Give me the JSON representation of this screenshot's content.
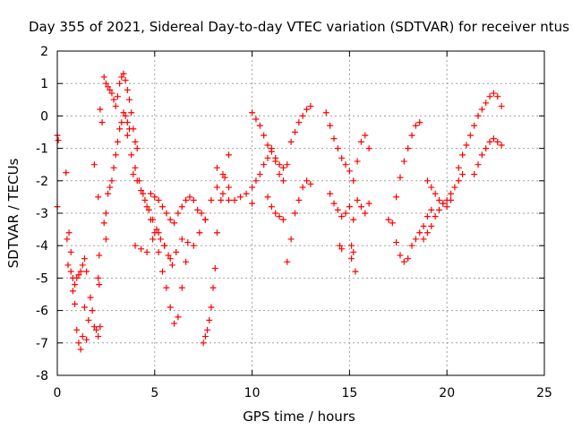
{
  "chart_data": {
    "type": "scatter",
    "title": "Day 355 of 2021, Sidereal Day-to-day VTEC variation (SDTVAR) for receiver ntus",
    "xlabel": "GPS time / hours",
    "ylabel": "SDTVAR / TECUs",
    "xlim": [
      0,
      25
    ],
    "ylim": [
      -8,
      2
    ],
    "xticks": [
      "0",
      "5",
      "10",
      "15",
      "20",
      "25"
    ],
    "yticks": [
      "-8",
      "-7",
      "-6",
      "-5",
      "-4",
      "-3",
      "-2",
      "-1",
      "0",
      "1",
      "2"
    ],
    "grid": true,
    "marker": "+",
    "color": "#ff0000",
    "series": [
      {
        "name": "isolated",
        "x": [
          0.0,
          0.0,
          0.05,
          0.45,
          0.5,
          0.55,
          1.9,
          2.1,
          2.15
        ],
        "y": [
          -0.6,
          -2.8,
          -0.75,
          -1.75,
          -3.8,
          -4.6,
          -1.5,
          -2.5,
          -4.3
        ]
      },
      {
        "name": "early-dip-a",
        "x": [
          0.6,
          0.7,
          0.8,
          0.9,
          1.0,
          1.1,
          1.2,
          1.3,
          1.4,
          1.5
        ],
        "y": [
          -3.6,
          -4.2,
          -5.0,
          -5.8,
          -6.6,
          -7.0,
          -7.2,
          -6.8,
          -5.9,
          -4.8
        ]
      },
      {
        "name": "early-dip-b",
        "x": [
          0.7,
          0.8,
          0.9,
          1.0,
          1.1,
          1.2,
          1.3,
          1.4
        ],
        "y": [
          -4.8,
          -5.4,
          -5.2,
          -5.0,
          -4.9,
          -4.8,
          -4.6,
          -4.4
        ]
      },
      {
        "name": "early-rise",
        "x": [
          1.5,
          1.6,
          1.7,
          1.8,
          1.9,
          2.0,
          2.1,
          2.2
        ],
        "y": [
          -6.9,
          -6.3,
          -5.6,
          -6.0,
          -6.5,
          -6.6,
          -6.8,
          -6.5
        ]
      },
      {
        "name": "early-right",
        "x": [
          2.1,
          2.15,
          2.2,
          2.3,
          2.4,
          2.5
        ],
        "y": [
          -5.0,
          -5.2,
          0.2,
          -0.2,
          -3.3,
          -3.8
        ]
      },
      {
        "name": "dawn-peak",
        "x": [
          2.4,
          2.5,
          2.6,
          2.7,
          2.8,
          2.9,
          3.0,
          3.1,
          3.2,
          3.3,
          3.4,
          3.5,
          3.6,
          3.7,
          3.8,
          3.9,
          4.0,
          4.1
        ],
        "y": [
          1.2,
          1.0,
          0.9,
          0.8,
          0.7,
          0.5,
          0.3,
          0.6,
          1.0,
          1.2,
          1.3,
          1.1,
          0.8,
          0.5,
          0.1,
          -0.4,
          -0.8,
          -1.0
        ]
      },
      {
        "name": "dawn-lower",
        "x": [
          2.5,
          2.6,
          2.7,
          2.8,
          2.9,
          3.0,
          3.1,
          3.2,
          3.3,
          3.4,
          3.5,
          3.6,
          3.7
        ],
        "y": [
          -3.0,
          -2.4,
          -2.2,
          -2.0,
          -1.6,
          -1.2,
          -0.8,
          -0.4,
          -0.2,
          0.1,
          0.0,
          -0.2,
          -0.4
        ]
      },
      {
        "name": "decline-a",
        "x": [
          3.6,
          3.8,
          4.0,
          4.2,
          4.4,
          4.6,
          4.8,
          5.0,
          5.2,
          5.4,
          5.6,
          5.8,
          6.0,
          6.2,
          6.4,
          6.6
        ],
        "y": [
          -0.6,
          -1.2,
          -1.6,
          -2.0,
          -2.4,
          -2.8,
          -3.2,
          -3.6,
          -4.2,
          -4.8,
          -5.3,
          -5.9,
          -6.4,
          -6.2,
          -5.3,
          -4.5
        ]
      },
      {
        "name": "decline-b",
        "x": [
          3.9,
          4.1,
          4.3,
          4.5,
          4.7,
          4.9,
          5.1,
          5.3,
          5.5,
          5.7,
          5.9
        ],
        "y": [
          -1.8,
          -2.0,
          -2.3,
          -2.6,
          -2.9,
          -3.2,
          -3.5,
          -3.8,
          -4.0,
          -4.3,
          -4.6
        ]
      },
      {
        "name": "band-4",
        "x": [
          4.0,
          4.3,
          4.6,
          4.9,
          5.2,
          5.5,
          5.8,
          6.1,
          6.4,
          6.7,
          7.0,
          7.3,
          7.6,
          7.9,
          8.2,
          8.5,
          8.8
        ],
        "y": [
          -4.0,
          -4.1,
          -4.2,
          -3.8,
          -3.6,
          -4.0,
          -4.4,
          -4.2,
          -3.8,
          -3.9,
          -4.0,
          -3.6,
          -3.2,
          -2.6,
          -2.2,
          -2.4,
          -2.6
        ]
      },
      {
        "name": "morning-arc",
        "x": [
          4.8,
          5.0,
          5.2,
          5.4,
          5.6,
          5.8,
          6.0,
          6.2,
          6.4,
          6.6,
          6.8,
          7.0,
          7.2,
          7.4,
          7.6
        ],
        "y": [
          -2.4,
          -2.5,
          -2.6,
          -2.8,
          -3.0,
          -3.2,
          -3.3,
          -3.0,
          -2.8,
          -2.6,
          -2.5,
          -2.6,
          -2.9,
          -3.0,
          -3.2
        ]
      },
      {
        "name": "evening-dip",
        "x": [
          7.5,
          7.6,
          7.7,
          7.8,
          7.9,
          8.0,
          8.1,
          8.2,
          8.4,
          8.6,
          8.8
        ],
        "y": [
          -7.0,
          -6.8,
          -6.6,
          -6.3,
          -5.9,
          -5.3,
          -4.7,
          -3.6,
          -2.6,
          -1.9,
          -1.2
        ]
      },
      {
        "name": "shelf-9",
        "x": [
          8.2,
          8.5,
          8.8,
          9.1,
          9.4,
          9.7,
          10.0
        ],
        "y": [
          -1.6,
          -1.8,
          -2.2,
          -2.6,
          -2.5,
          -2.4,
          -2.7
        ]
      },
      {
        "name": "midday-rise",
        "x": [
          10.0,
          10.2,
          10.4,
          10.6,
          10.8,
          11.0,
          11.2,
          11.4,
          11.6,
          11.8,
          12.0,
          12.2,
          12.4,
          12.6,
          12.8,
          13.0
        ],
        "y": [
          -2.2,
          -2.0,
          -1.8,
          -1.5,
          -1.3,
          -1.0,
          -1.4,
          -1.8,
          -2.0,
          -1.5,
          -0.8,
          -0.5,
          -0.2,
          0.0,
          0.2,
          0.3
        ]
      },
      {
        "name": "midday-top",
        "x": [
          10.0,
          10.2,
          10.4,
          10.6,
          10.8,
          11.0,
          11.2,
          11.4,
          11.6
        ],
        "y": [
          0.1,
          -0.1,
          -0.3,
          -0.6,
          -0.9,
          -1.1,
          -1.3,
          -1.5,
          -1.6
        ]
      },
      {
        "name": "midday-low",
        "x": [
          10.8,
          11.0,
          11.2,
          11.4,
          11.6,
          11.8,
          12.0,
          12.2,
          12.4,
          12.6,
          12.8,
          13.0
        ],
        "y": [
          -2.5,
          -2.8,
          -3.0,
          -3.1,
          -3.2,
          -4.5,
          -3.8,
          -3.0,
          -2.6,
          -2.2,
          -2.0,
          -2.1
        ]
      },
      {
        "name": "afternoon",
        "x": [
          13.8,
          14.0,
          14.2,
          14.4,
          14.6,
          14.8,
          15.0,
          15.2,
          15.4,
          15.6,
          15.8,
          16.0
        ],
        "y": [
          0.1,
          -0.3,
          -0.7,
          -1.0,
          -1.3,
          -1.5,
          -1.7,
          -2.0,
          -1.4,
          -0.8,
          -0.6,
          -1.0
        ]
      },
      {
        "name": "afternoon-low",
        "x": [
          14.0,
          14.2,
          14.4,
          14.6,
          14.8,
          15.0,
          15.2,
          15.4,
          15.6,
          15.8,
          16.0
        ],
        "y": [
          -2.4,
          -2.7,
          -2.9,
          -3.1,
          -3.0,
          -2.8,
          -3.2,
          -2.6,
          -2.8,
          -3.0,
          -2.7
        ]
      },
      {
        "name": "afternoon-iso",
        "x": [
          14.5,
          14.6,
          15.1,
          15.2,
          15.3,
          15.1
        ],
        "y": [
          -4.0,
          -4.1,
          -4.0,
          -4.2,
          -4.8,
          -4.4
        ]
      },
      {
        "name": "late-dip",
        "x": [
          17.0,
          17.2,
          17.4,
          17.6,
          17.8,
          18.0,
          18.2,
          18.4,
          18.6,
          18.8,
          19.0,
          19.2
        ],
        "y": [
          -3.2,
          -3.3,
          -3.9,
          -4.3,
          -4.5,
          -4.4,
          -4.0,
          -3.8,
          -3.6,
          -3.4,
          -3.1,
          -2.9
        ]
      },
      {
        "name": "late-climb",
        "x": [
          17.4,
          17.6,
          17.8,
          18.0,
          18.2,
          18.4,
          18.6
        ],
        "y": [
          -2.5,
          -1.9,
          -1.4,
          -1.0,
          -0.6,
          -0.3,
          -0.2
        ]
      },
      {
        "name": "late-band",
        "x": [
          18.8,
          19.0,
          19.2,
          19.4,
          19.6,
          19.8,
          20.0,
          20.2,
          20.4,
          20.6,
          20.8
        ],
        "y": [
          -3.8,
          -3.6,
          -3.4,
          -3.1,
          -2.9,
          -2.7,
          -2.6,
          -2.4,
          -2.2,
          -2.0,
          -1.8
        ]
      },
      {
        "name": "late-cross",
        "x": [
          19.0,
          19.2,
          19.4,
          19.6,
          19.8,
          20.0,
          20.2
        ],
        "y": [
          -2.0,
          -2.2,
          -2.4,
          -2.6,
          -2.7,
          -2.8,
          -2.6
        ]
      },
      {
        "name": "night-rise",
        "x": [
          20.6,
          20.8,
          21.0,
          21.2,
          21.4,
          21.6,
          21.8,
          22.0,
          22.2,
          22.4,
          22.6,
          22.8
        ],
        "y": [
          -1.6,
          -1.2,
          -0.9,
          -0.6,
          -0.3,
          0.0,
          0.2,
          0.4,
          0.6,
          0.7,
          0.6,
          0.3
        ]
      },
      {
        "name": "night-low",
        "x": [
          21.4,
          21.6,
          21.8,
          22.0,
          22.2,
          22.4,
          22.6,
          22.8
        ],
        "y": [
          -1.8,
          -1.5,
          -1.2,
          -1.0,
          -0.8,
          -0.7,
          -0.8,
          -0.9
        ]
      }
    ]
  }
}
